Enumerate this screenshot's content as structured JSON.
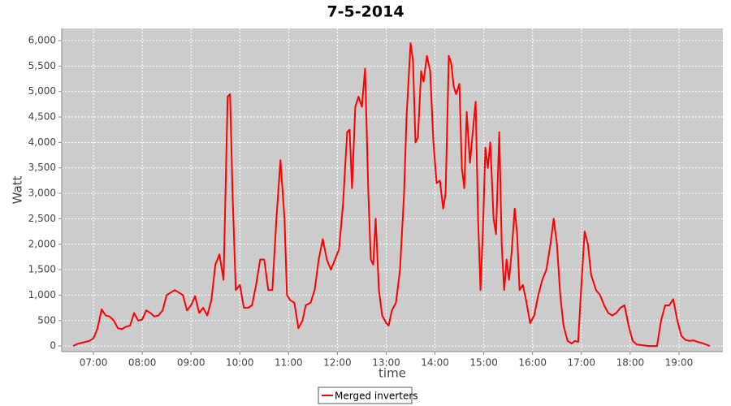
{
  "chart_data": {
    "type": "line",
    "title": "7-5-2014",
    "x_label": "time",
    "y_label": "Watt",
    "x": [
      "06:35",
      "06:40",
      "06:45",
      "06:50",
      "06:55",
      "07:00",
      "07:05",
      "07:10",
      "07:15",
      "07:20",
      "07:25",
      "07:30",
      "07:35",
      "07:40",
      "07:45",
      "07:50",
      "07:55",
      "08:00",
      "08:05",
      "08:10",
      "08:15",
      "08:20",
      "08:25",
      "08:30",
      "08:35",
      "08:40",
      "08:45",
      "08:50",
      "08:55",
      "09:00",
      "09:05",
      "09:10",
      "09:15",
      "09:20",
      "09:25",
      "09:30",
      "09:35",
      "09:40",
      "09:45",
      "09:48",
      "09:51",
      "09:55",
      "10:00",
      "10:05",
      "10:10",
      "10:15",
      "10:20",
      "10:25",
      "10:30",
      "10:35",
      "10:40",
      "10:45",
      "10:50",
      "10:55",
      "10:58",
      "11:02",
      "11:07",
      "11:12",
      "11:17",
      "11:21",
      "11:27",
      "11:32",
      "11:37",
      "11:42",
      "11:47",
      "11:52",
      "11:57",
      "12:02",
      "12:07",
      "12:12",
      "12:15",
      "12:18",
      "12:22",
      "12:26",
      "12:30",
      "12:34",
      "12:38",
      "12:41",
      "12:44",
      "12:47",
      "12:51",
      "12:55",
      "13:00",
      "13:03",
      "13:07",
      "13:12",
      "13:17",
      "13:22",
      "13:25",
      "13:30",
      "13:33",
      "13:36",
      "13:39",
      "13:43",
      "13:46",
      "13:50",
      "13:54",
      "13:58",
      "14:02",
      "14:06",
      "14:10",
      "14:13",
      "14:17",
      "14:20",
      "14:23",
      "14:26",
      "14:30",
      "14:33",
      "14:36",
      "14:39",
      "14:43",
      "14:47",
      "14:50",
      "14:53",
      "14:56",
      "14:59",
      "15:02",
      "15:05",
      "15:08",
      "15:12",
      "15:15",
      "15:19",
      "15:22",
      "15:25",
      "15:28",
      "15:31",
      "15:34",
      "15:38",
      "15:41",
      "15:44",
      "15:48",
      "15:52",
      "15:57",
      "16:02",
      "16:07",
      "16:12",
      "16:17",
      "16:22",
      "16:26",
      "16:30",
      "16:34",
      "16:38",
      "16:43",
      "16:48",
      "16:52",
      "16:56",
      "17:00",
      "17:04",
      "17:08",
      "17:12",
      "17:18",
      "17:23",
      "17:28",
      "17:33",
      "17:38",
      "17:43",
      "17:48",
      "17:53",
      "17:58",
      "18:03",
      "18:08",
      "18:13",
      "18:18",
      "18:23",
      "18:28",
      "18:33",
      "18:38",
      "18:43",
      "18:48",
      "18:53",
      "18:58",
      "19:03",
      "19:08",
      "19:13",
      "19:18",
      "19:23",
      "19:28",
      "19:33",
      "19:38"
    ],
    "series": [
      {
        "name": "Merged inverters",
        "color": "#ff0000",
        "values": [
          0,
          40,
          60,
          80,
          100,
          150,
          350,
          720,
          600,
          580,
          500,
          350,
          330,
          380,
          400,
          650,
          500,
          520,
          700,
          650,
          580,
          600,
          700,
          1000,
          1050,
          1100,
          1050,
          1000,
          700,
          800,
          980,
          650,
          750,
          600,
          900,
          1600,
          1800,
          1300,
          4900,
          4950,
          3000,
          1100,
          1200,
          750,
          750,
          800,
          1200,
          1700,
          1700,
          1100,
          1100,
          2500,
          3650,
          2500,
          1000,
          900,
          850,
          350,
          500,
          800,
          850,
          1100,
          1700,
          2100,
          1700,
          1500,
          1700,
          1900,
          2800,
          4200,
          4250,
          3100,
          4700,
          4900,
          4700,
          5450,
          3000,
          1700,
          1600,
          2500,
          1100,
          600,
          450,
          400,
          700,
          850,
          1500,
          3000,
          4500,
          5950,
          5600,
          4000,
          4100,
          5400,
          5200,
          5700,
          5400,
          4000,
          3200,
          3250,
          2700,
          3000,
          5700,
          5550,
          5100,
          4950,
          5150,
          3500,
          3100,
          4600,
          3600,
          4300,
          4800,
          2500,
          1100,
          2300,
          3900,
          3500,
          4000,
          2500,
          2200,
          4200,
          2000,
          1100,
          1700,
          1300,
          1800,
          2700,
          2200,
          1100,
          1200,
          900,
          450,
          600,
          1000,
          1300,
          1500,
          2000,
          2500,
          2000,
          1000,
          400,
          100,
          50,
          100,
          80,
          1200,
          2250,
          2000,
          1400,
          1100,
          1000,
          800,
          650,
          600,
          650,
          750,
          800,
          400,
          100,
          30,
          20,
          10,
          0,
          0,
          0,
          500,
          800,
          800,
          920,
          500,
          200,
          120,
          100,
          110,
          80,
          60,
          30,
          0
        ]
      }
    ],
    "xlim": [
      "06:21",
      "19:54"
    ],
    "xticks": [
      "07:00",
      "08:00",
      "09:00",
      "10:00",
      "11:00",
      "12:00",
      "13:00",
      "14:00",
      "15:00",
      "16:00",
      "17:00",
      "18:00",
      "19:00"
    ],
    "ylim": [
      -110,
      6240
    ],
    "yticks": [
      0,
      500,
      {
        "value": 1000,
        "label": "1,000"
      },
      {
        "value": 1500,
        "label": "1,500"
      },
      {
        "value": 2000,
        "label": "2,000"
      },
      {
        "value": 2500,
        "label": "2,500"
      },
      {
        "value": 3000,
        "label": "3,000"
      },
      {
        "value": 3500,
        "label": "3,500"
      },
      {
        "value": 4000,
        "label": "4,000"
      },
      {
        "value": 4500,
        "label": "4,500"
      },
      {
        "value": 5000,
        "label": "5,000"
      },
      {
        "value": 5500,
        "label": "5,500"
      },
      {
        "value": 6000,
        "label": "6,000"
      }
    ],
    "grid": true
  }
}
